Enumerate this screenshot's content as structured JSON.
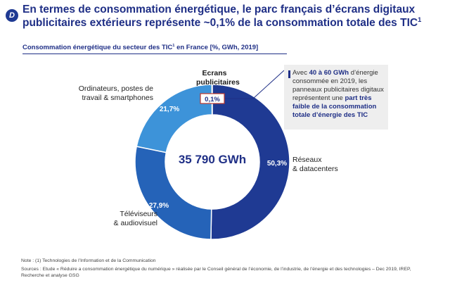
{
  "header": {
    "badge": "D",
    "title": "En termes de consommation énergétique, le parc français d’écrans digitaux publicitaires extérieurs représente ~0,1% de la consommation totale des TIC",
    "title_sup": "1"
  },
  "chart_data": {
    "type": "pie",
    "title": "Consommation énergétique du secteur des TIC",
    "title_sup": "1",
    "title_suffix": " en France [%, GWh, 2019]",
    "center_label": "35 790 GWh",
    "slices": [
      {
        "name": "Ecrans publicitaires",
        "value": 0.1,
        "label": "0,1%",
        "color": "#1f2f86"
      },
      {
        "name": "Réseaux & datacenters",
        "value": 50.3,
        "label": "50,3%",
        "color": "#1f3a93"
      },
      {
        "name": "Téléviseurs & audiovisuel",
        "value": 27.9,
        "label": "27,9%",
        "color": "#2563b8"
      },
      {
        "name": "Ordinateurs, postes de travail & smartphones",
        "value": 21.7,
        "label": "21,7%",
        "color": "#3d93d9"
      }
    ]
  },
  "labels": {
    "ecrans_line1": "Ecrans",
    "ecrans_line2": "publicitaires",
    "reseaux_line1": "Réseaux",
    "reseaux_line2": "& datacenters",
    "televiseurs_line1": "Téléviseurs",
    "televiseurs_line2": "& audiovisuel",
    "ordinateurs_line1": "Ordinateurs, postes de",
    "ordinateurs_line2": "travail & smartphones"
  },
  "callout": {
    "t1": "Avec ",
    "b1": "40 à 60 GWh",
    "t2": " d’énergie consommée en 2019, les panneaux publicitaires digitaux représentent une ",
    "b2": "part très faible de la consommation totale d’énergie des TIC"
  },
  "footer": {
    "note": "Note : (1) Technologies de l’Information et de la Communication",
    "sources": "Sources : Etude « Réduire a consommation énergétique du numérique » réalisée par le Conseil général de l’économie, de l’industrie, de l’énergie et des technologies – Dec 2019, IREP, Recherche et analyse GSG"
  },
  "colors": {
    "navy": "#1f2f86",
    "accent_border": "#c0392b",
    "callout_bg": "#eeeeee"
  }
}
